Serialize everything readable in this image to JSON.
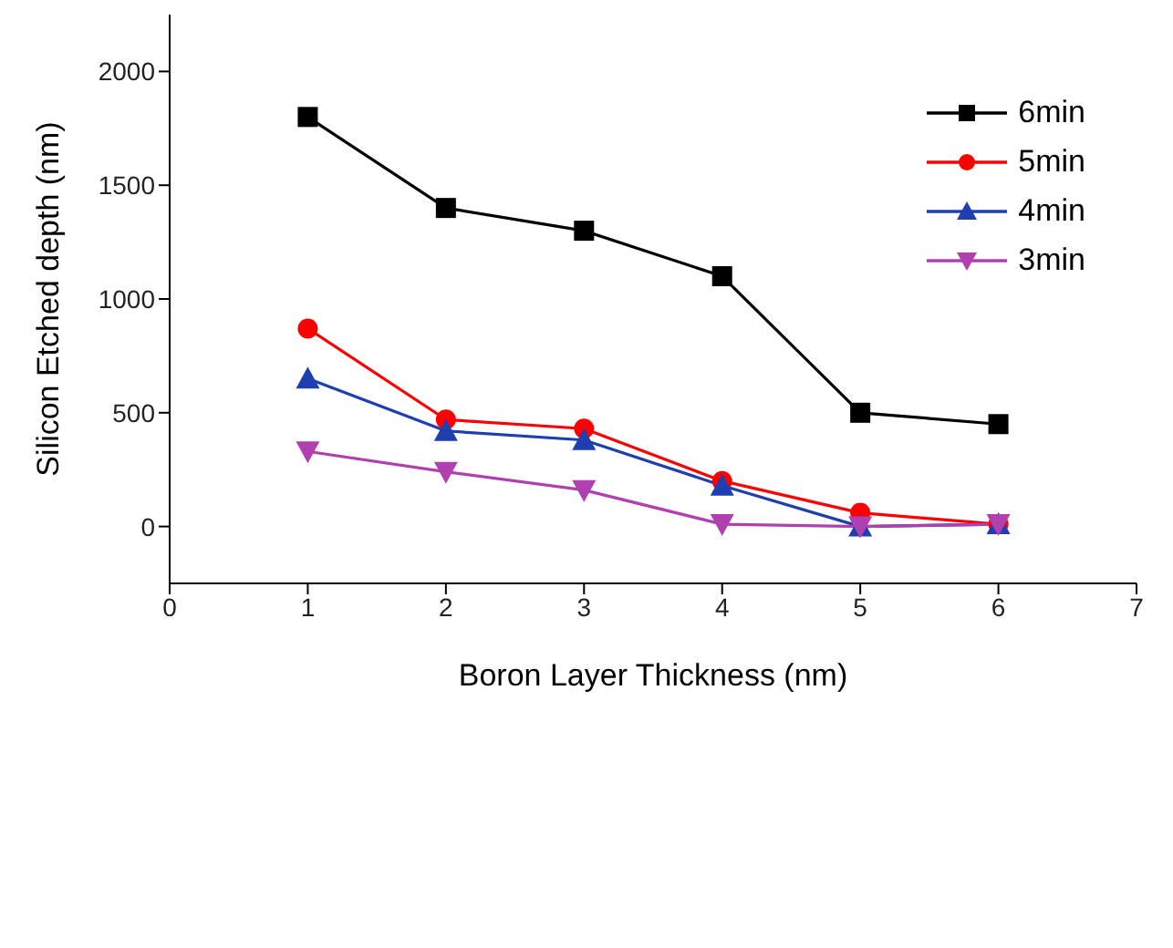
{
  "chart_data": {
    "type": "line",
    "xlabel": "Boron Layer Thickness (nm)",
    "ylabel": "Silicon Etched depth (nm)",
    "x": [
      1,
      2,
      3,
      4,
      5,
      6
    ],
    "xlim": [
      0,
      7
    ],
    "xticks": [
      0,
      1,
      2,
      3,
      4,
      5,
      6,
      7
    ],
    "ylim": [
      -250,
      2250
    ],
    "yticks": [
      0,
      500,
      1000,
      1500,
      2000
    ],
    "grid": false,
    "legend": "top right",
    "line_style": "solid",
    "series": [
      {
        "name": "6min",
        "color": "#000000",
        "marker": "square",
        "values": [
          1800,
          1400,
          1300,
          1100,
          500,
          450
        ]
      },
      {
        "name": "5min",
        "color": "#ff0000",
        "marker": "circle",
        "values": [
          870,
          470,
          430,
          200,
          60,
          10
        ]
      },
      {
        "name": "4min",
        "color": "#1f3fb0",
        "marker": "triangle",
        "values": [
          650,
          420,
          380,
          180,
          0,
          10
        ]
      },
      {
        "name": "3min",
        "color": "#b040b0",
        "marker": "triangle-down",
        "values": [
          330,
          240,
          160,
          10,
          0,
          10
        ]
      }
    ]
  }
}
